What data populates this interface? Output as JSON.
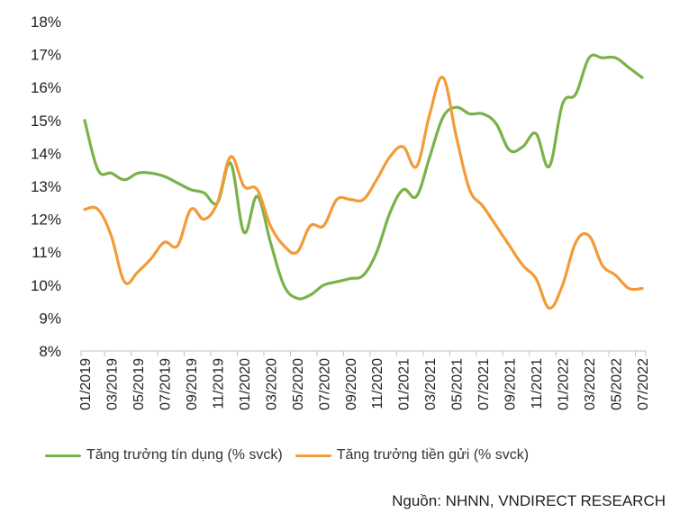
{
  "chart_data": {
    "type": "line",
    "title": "",
    "xlabel": "",
    "ylabel": "",
    "ylim": [
      8,
      18
    ],
    "yticks": [
      "8%",
      "9%",
      "10%",
      "11%",
      "12%",
      "13%",
      "14%",
      "15%",
      "16%",
      "17%",
      "18%"
    ],
    "xtick_labels": [
      "01/2019",
      "03/2019",
      "05/2019",
      "07/2019",
      "09/2019",
      "11/2019",
      "01/2020",
      "03/2020",
      "05/2020",
      "07/2020",
      "09/2020",
      "11/2020",
      "01/2021",
      "03/2021",
      "05/2021",
      "07/2021",
      "09/2021",
      "11/2021",
      "01/2022",
      "03/2022",
      "05/2022",
      "07/2022"
    ],
    "x": [
      "01/2019",
      "02/2019",
      "03/2019",
      "04/2019",
      "05/2019",
      "06/2019",
      "07/2019",
      "08/2019",
      "09/2019",
      "10/2019",
      "11/2019",
      "12/2019",
      "01/2020",
      "02/2020",
      "03/2020",
      "04/2020",
      "05/2020",
      "06/2020",
      "07/2020",
      "08/2020",
      "09/2020",
      "10/2020",
      "11/2020",
      "12/2020",
      "01/2021",
      "02/2021",
      "03/2021",
      "04/2021",
      "05/2021",
      "06/2021",
      "07/2021",
      "08/2021",
      "09/2021",
      "10/2021",
      "11/2021",
      "12/2021",
      "01/2022",
      "02/2022",
      "03/2022",
      "04/2022",
      "05/2022",
      "06/2022",
      "07/2022"
    ],
    "grid": false,
    "legend_position": "bottom",
    "series": [
      {
        "name": "Tăng trưởng tín dụng (% svck)",
        "color": "#7bb14a",
        "values": [
          15.0,
          13.5,
          13.4,
          13.2,
          13.4,
          13.4,
          13.3,
          13.1,
          12.9,
          12.8,
          12.5,
          13.7,
          11.6,
          12.7,
          11.3,
          10.0,
          9.6,
          9.7,
          10.0,
          10.1,
          10.2,
          10.3,
          11.0,
          12.2,
          12.9,
          12.7,
          13.9,
          15.1,
          15.4,
          15.2,
          15.2,
          14.9,
          14.1,
          14.2,
          14.6,
          13.6,
          15.5,
          15.8,
          16.9,
          16.9,
          16.9,
          16.6,
          16.3
        ]
      },
      {
        "name": "Tăng trưởng tiền gửi (% svck)",
        "color": "#f29b38",
        "values": [
          12.3,
          12.3,
          11.5,
          10.1,
          10.4,
          10.8,
          11.3,
          11.2,
          12.3,
          12.0,
          12.5,
          13.9,
          13.0,
          12.9,
          11.8,
          11.2,
          11.0,
          11.8,
          11.8,
          12.6,
          12.6,
          12.6,
          13.2,
          13.9,
          14.2,
          13.6,
          15.2,
          16.3,
          14.5,
          12.9,
          12.4,
          11.8,
          11.2,
          10.6,
          10.2,
          9.3,
          10.0,
          11.3,
          11.5,
          10.6,
          10.3,
          9.9,
          9.9
        ]
      }
    ]
  },
  "source": "Nguồn: NHNN, VNDIRECT RESEARCH"
}
